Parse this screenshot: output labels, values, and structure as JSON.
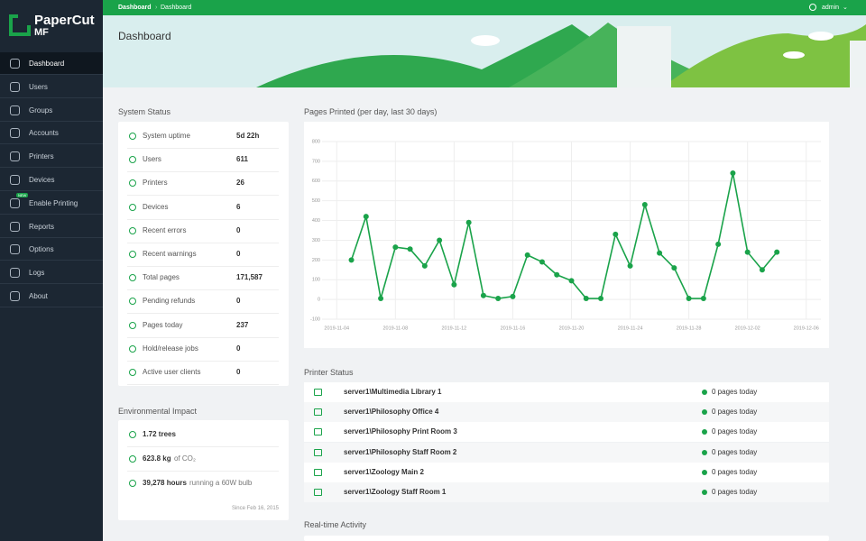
{
  "sidebar": {
    "logo": "PaperCut",
    "logo_suffix": "MF",
    "nav": [
      "Dashboard",
      "Users",
      "Groups",
      "Accounts",
      "Printers",
      "Devices",
      "Enable Printing",
      "Reports",
      "Options",
      "Logs",
      "About"
    ],
    "badge": "NEW"
  },
  "topbar": {
    "breadcrumbs": [
      "Dashboard",
      "Dashboard"
    ],
    "user": "admin"
  },
  "header": {
    "title": "Dashboard"
  },
  "system_status": {
    "title": "System Status",
    "rows": [
      [
        "System uptime",
        "5d 22h"
      ],
      [
        "Users",
        "611"
      ],
      [
        "Printers",
        "26"
      ],
      [
        "Devices",
        "6"
      ],
      [
        "Recent errors",
        "0"
      ],
      [
        "Recent warnings",
        "0"
      ],
      [
        "Total pages",
        "171,587"
      ],
      [
        "Pending refunds",
        "0"
      ],
      [
        "Pages today",
        "237"
      ],
      [
        "Hold/release jobs",
        "0"
      ],
      [
        "Active user clients",
        "0"
      ]
    ]
  },
  "environmental_impact": {
    "title": "Environmental Impact",
    "items": [
      [
        "1.72 trees",
        ""
      ],
      [
        "623.8 kg",
        "of CO₂"
      ],
      [
        "39,278 hours",
        "running a 60W bulb"
      ]
    ],
    "footer": "Since Feb 16, 2015"
  },
  "chart_data": {
    "type": "line",
    "title": "Pages Printed (per day, last 30 days)",
    "x": [
      "2019-11-05",
      "2019-11-06",
      "2019-11-07",
      "2019-11-08",
      "2019-11-09",
      "2019-11-10",
      "2019-11-11",
      "2019-11-12",
      "2019-11-13",
      "2019-11-14",
      "2019-11-15",
      "2019-11-16",
      "2019-11-17",
      "2019-11-18",
      "2019-11-19",
      "2019-11-20",
      "2019-11-21",
      "2019-11-22",
      "2019-11-23",
      "2019-11-24",
      "2019-11-25",
      "2019-11-26",
      "2019-11-27",
      "2019-11-28",
      "2019-11-29",
      "2019-11-30",
      "2019-12-01",
      "2019-12-02",
      "2019-12-03",
      "2019-12-04"
    ],
    "values": [
      200,
      420,
      5,
      265,
      255,
      170,
      300,
      75,
      390,
      20,
      5,
      15,
      225,
      190,
      125,
      95,
      5,
      5,
      330,
      170,
      480,
      235,
      160,
      5,
      5,
      280,
      640,
      240,
      150,
      240
    ],
    "color": "#1aa34a",
    "xlim": [
      "2019-11-03",
      "2019-12-07"
    ],
    "xticks": [
      "2019-11-04",
      "2019-11-08",
      "2019-11-12",
      "2019-11-16",
      "2019-11-20",
      "2019-11-24",
      "2019-11-28",
      "2019-12-02",
      "2019-12-06"
    ],
    "ylim": [
      -100,
      800
    ],
    "yticks": [
      -100,
      0,
      100,
      200,
      300,
      400,
      500,
      600,
      700,
      800
    ],
    "grid": true
  },
  "printer_status": {
    "title": "Printer Status",
    "rows": [
      [
        "server1\\Multimedia Library 1",
        "0 pages today"
      ],
      [
        "server1\\Philosophy Office 4",
        "0 pages today"
      ],
      [
        "server1\\Philosophy Print Room 3",
        "0 pages today"
      ],
      [
        "server1\\Philosophy Staff Room 2",
        "0 pages today"
      ],
      [
        "server1\\Zoology Main 2",
        "0 pages today"
      ],
      [
        "server1\\Zoology Staff Room 1",
        "0 pages today"
      ]
    ]
  },
  "realtime_activity": {
    "title": "Real-time Activity"
  }
}
